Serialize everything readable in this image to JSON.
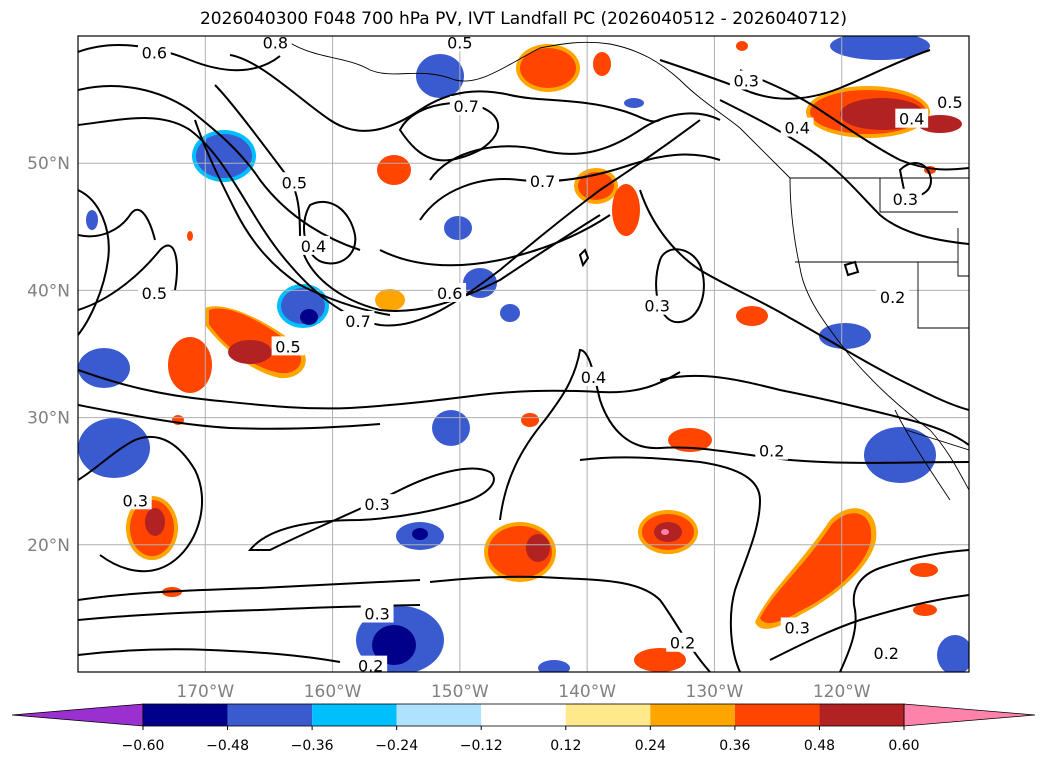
{
  "title": "2026040300 F048 700 hPa PV, IVT Landfall PC (2026040512 - 2026040712)",
  "map": {
    "projection": "PlateCarree",
    "lon_range": [
      -180,
      -110
    ],
    "lat_range": [
      10,
      60
    ],
    "lon_ticks": [
      {
        "lon": -170,
        "label": "170°W"
      },
      {
        "lon": -160,
        "label": "160°W"
      },
      {
        "lon": -150,
        "label": "150°W"
      },
      {
        "lon": -140,
        "label": "140°W"
      },
      {
        "lon": -130,
        "label": "130°W"
      },
      {
        "lon": -120,
        "label": "120°W"
      }
    ],
    "lat_ticks": [
      {
        "lat": 20,
        "label": "20°N"
      },
      {
        "lat": 30,
        "label": "30°N"
      },
      {
        "lat": 40,
        "label": "40°N"
      },
      {
        "lat": 50,
        "label": "50°N"
      }
    ],
    "gridlines": true
  },
  "contour_labels": [
    {
      "text": "0.6",
      "lon": -174,
      "lat": 58.7
    },
    {
      "text": "0.8",
      "lon": -164.5,
      "lat": 59.5
    },
    {
      "text": "0.5",
      "lon": -150,
      "lat": 59.5
    },
    {
      "text": "0.7",
      "lon": -149.5,
      "lat": 54.5
    },
    {
      "text": "0.3",
      "lon": -127.5,
      "lat": 56.5
    },
    {
      "text": "0.5",
      "lon": -111.5,
      "lat": 54.8
    },
    {
      "text": "0.4",
      "lon": -114.5,
      "lat": 53.5
    },
    {
      "text": "0.4",
      "lon": -123.5,
      "lat": 52.8
    },
    {
      "text": "0.7",
      "lon": -143.5,
      "lat": 48.6
    },
    {
      "text": "0.5",
      "lon": -163,
      "lat": 48.5
    },
    {
      "text": "0.3",
      "lon": -115,
      "lat": 47.2
    },
    {
      "text": "0.4",
      "lon": -161.5,
      "lat": 43.5
    },
    {
      "text": "0.6",
      "lon": -150.8,
      "lat": 39.8
    },
    {
      "text": "0.5",
      "lon": -174,
      "lat": 39.8
    },
    {
      "text": "0.3",
      "lon": -134.5,
      "lat": 38.8
    },
    {
      "text": "0.2",
      "lon": -116,
      "lat": 39.5
    },
    {
      "text": "0.7",
      "lon": -158,
      "lat": 37.6
    },
    {
      "text": "0.5",
      "lon": -163.5,
      "lat": 35.6
    },
    {
      "text": "0.4",
      "lon": -139.5,
      "lat": 33.2
    },
    {
      "text": "0.2",
      "lon": -125.5,
      "lat": 27.4
    },
    {
      "text": "0.3",
      "lon": -156.5,
      "lat": 23.2
    },
    {
      "text": "0.3",
      "lon": -175.5,
      "lat": 23.5
    },
    {
      "text": "0.3",
      "lon": -156.5,
      "lat": 14.6
    },
    {
      "text": "0.3",
      "lon": -123.5,
      "lat": 13.5
    },
    {
      "text": "0.2",
      "lon": -132.5,
      "lat": 12.3
    },
    {
      "text": "0.2",
      "lon": -116.5,
      "lat": 11.5
    },
    {
      "text": "0.2",
      "lon": -157,
      "lat": 10.5
    }
  ],
  "colorbar": {
    "ticks": [
      "−0.60",
      "−0.48",
      "−0.36",
      "−0.24",
      "−0.12",
      "0.12",
      "0.24",
      "0.36",
      "0.48",
      "0.60"
    ],
    "colors": [
      "#9b30d0",
      "#00008b",
      "#3a5bd0",
      "#00bfff",
      "#aee2ff",
      "#ffffff",
      "#ffe98a",
      "#ffa500",
      "#ff4500",
      "#b22222",
      "#ff82ab"
    ]
  },
  "fill_colors": {
    "neg_strong": "#00008b",
    "neg": "#3a5bd0",
    "neg_light": "#00bfff",
    "pos_light": "#ffe98a",
    "pos": "#ffa500",
    "pos_mid": "#ff4500",
    "pos_strong": "#b22222",
    "pos_max": "#ff82ab"
  }
}
